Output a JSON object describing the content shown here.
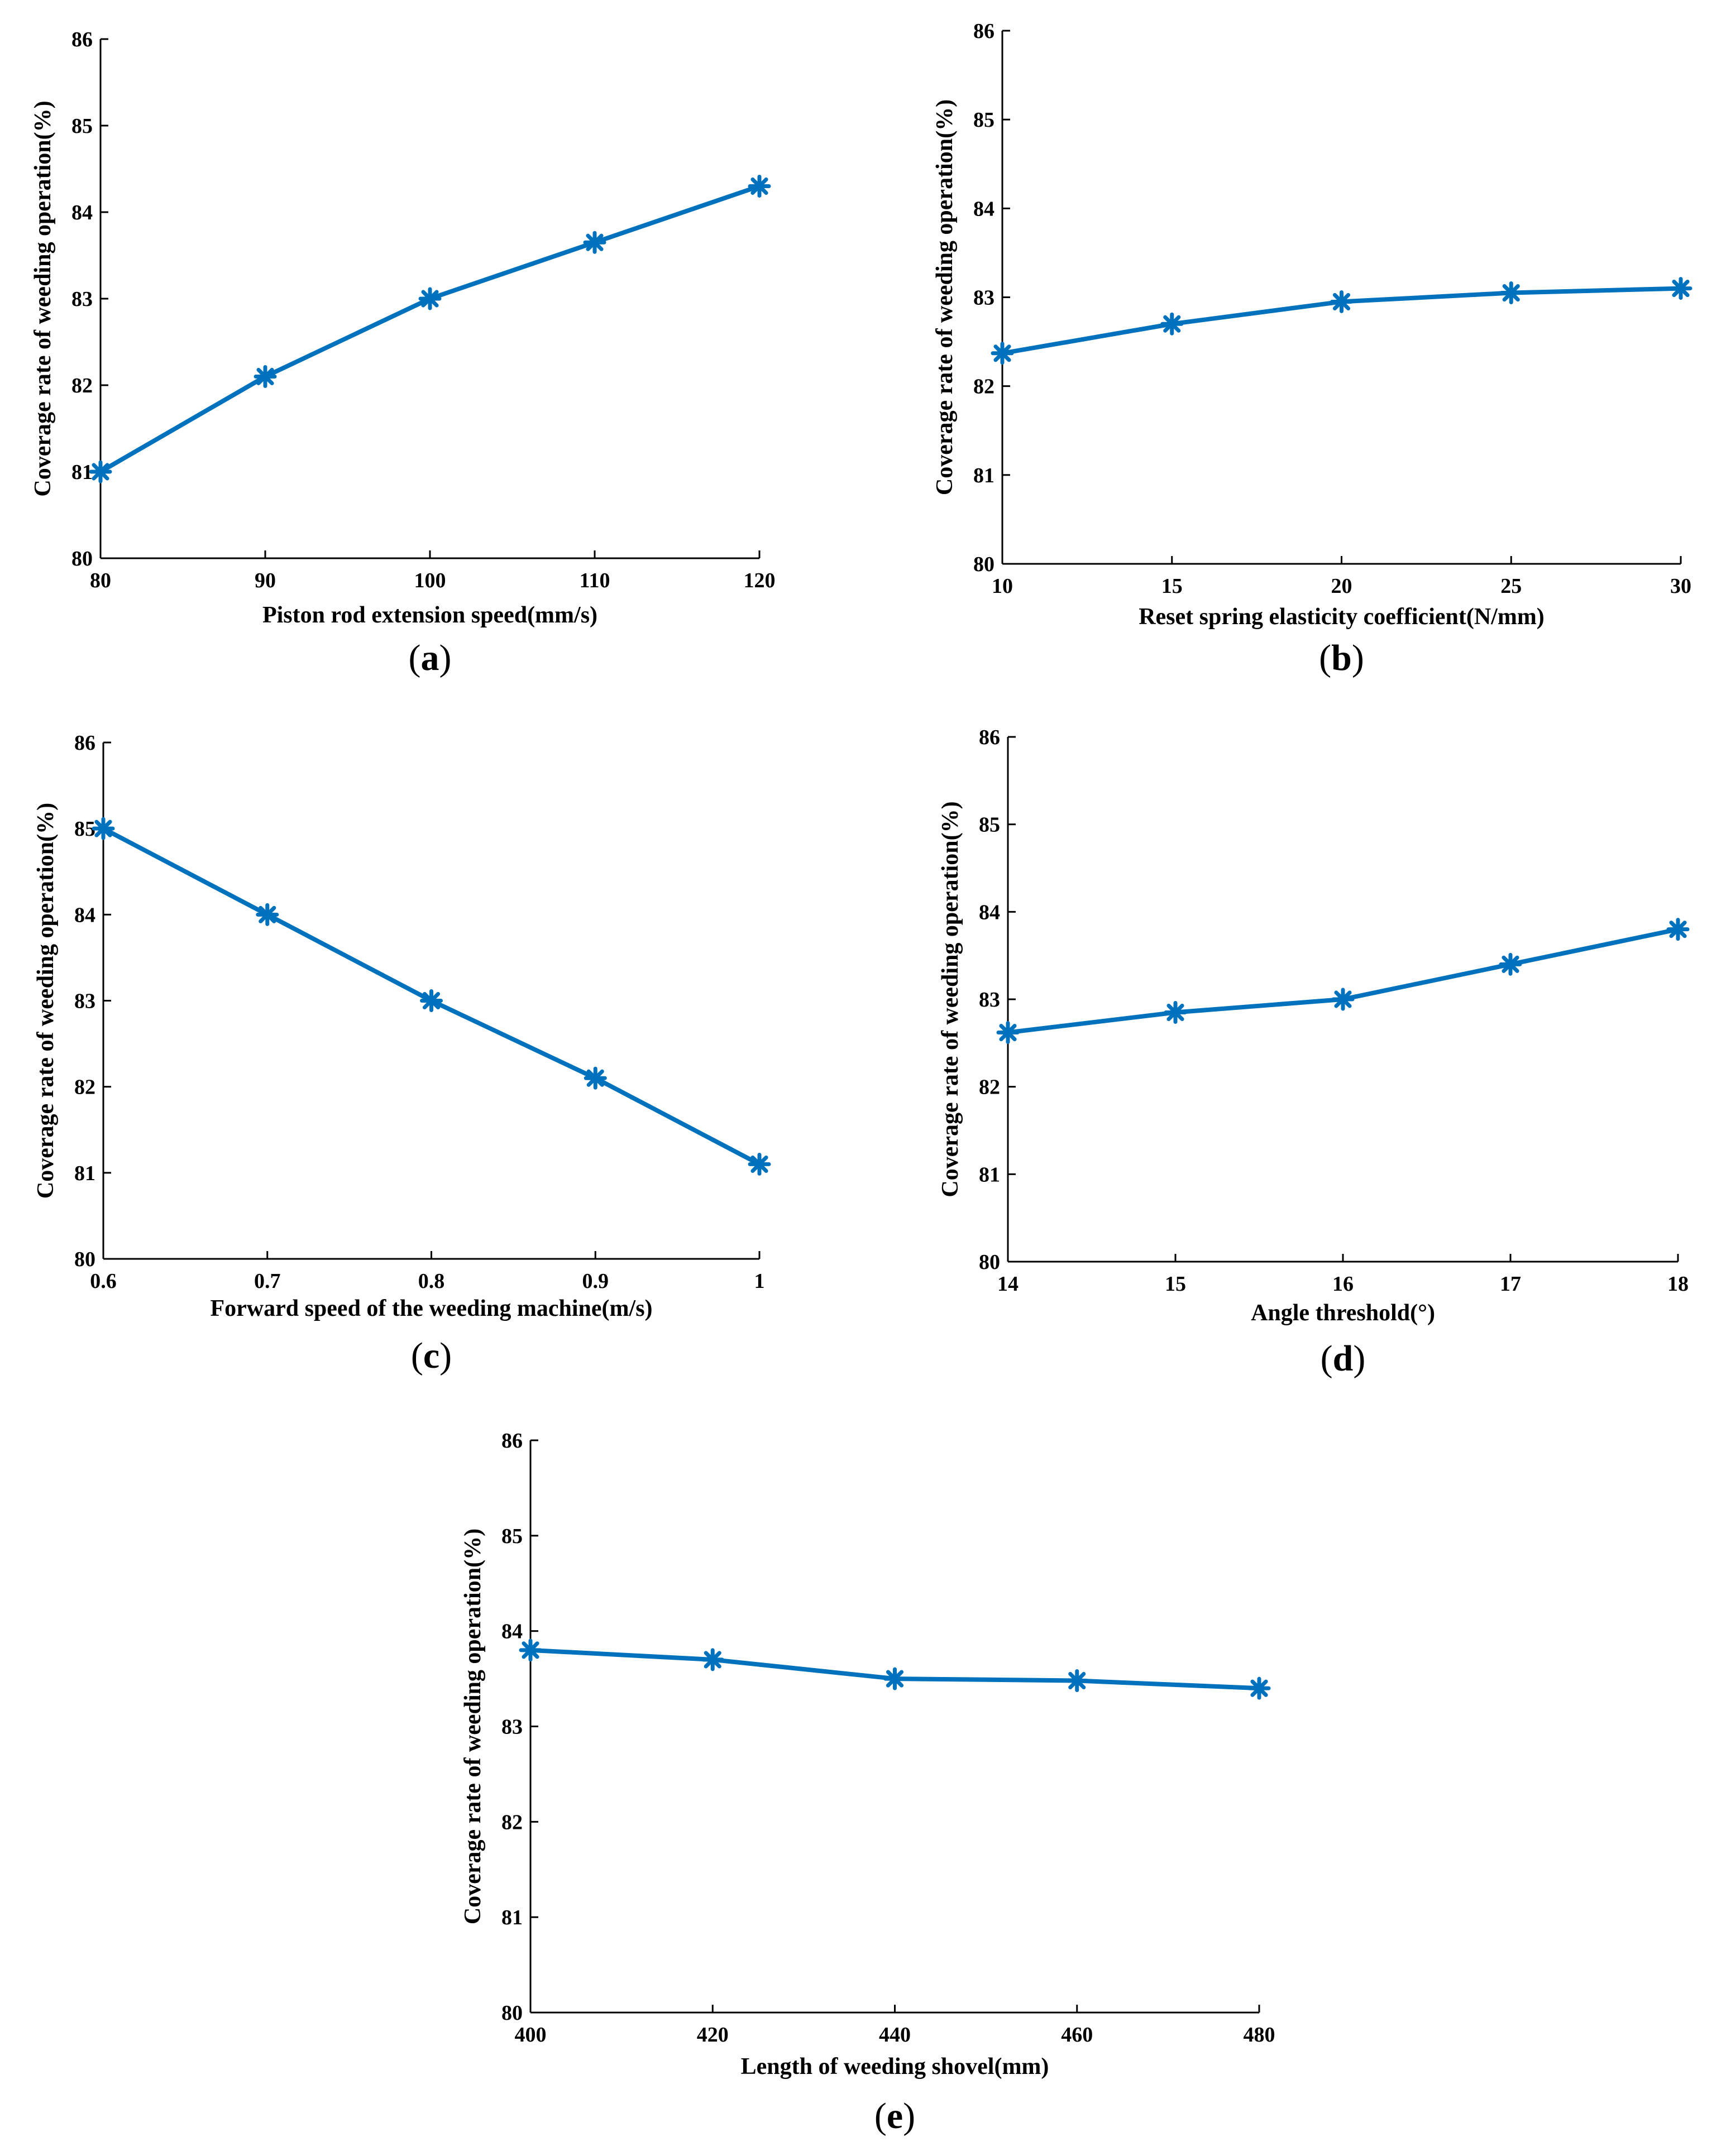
{
  "figure": {
    "captions": [
      "(a)",
      "(b)",
      "(c)",
      "(d)",
      "(e)"
    ]
  },
  "style": {
    "line_color": "#0072BD",
    "axis_color": "#000000"
  },
  "chart_data": [
    {
      "panel": "a",
      "type": "line",
      "x": [
        80,
        90,
        100,
        110,
        120
      ],
      "y": [
        81.0,
        82.1,
        83.0,
        83.65,
        84.3
      ],
      "xticks": [
        "80",
        "90",
        "100",
        "110",
        "120"
      ],
      "yticks": [
        "80",
        "81",
        "82",
        "83",
        "84",
        "85",
        "86"
      ],
      "xlim": [
        80,
        120
      ],
      "ylim": [
        80,
        86
      ],
      "xlabel": "Piston rod extension speed(mm/s)",
      "ylabel": "Coverage rate of weeding operation(%)",
      "marker": "asterisk",
      "caption_letter": "a"
    },
    {
      "panel": "b",
      "type": "line",
      "x": [
        10,
        15,
        20,
        25,
        30
      ],
      "y": [
        82.37,
        82.7,
        82.95,
        83.05,
        83.1
      ],
      "xticks": [
        "10",
        "15",
        "20",
        "25",
        "30"
      ],
      "yticks": [
        "80",
        "81",
        "82",
        "83",
        "84",
        "85",
        "86"
      ],
      "xlim": [
        10,
        30
      ],
      "ylim": [
        80,
        86
      ],
      "xlabel": "Reset spring elasticity coefficient(N/mm)",
      "ylabel": "Coverage rate of weeding operation(%)",
      "marker": "asterisk",
      "caption_letter": "b"
    },
    {
      "panel": "c",
      "type": "line",
      "x": [
        0.6,
        0.7,
        0.8,
        0.9,
        1.0
      ],
      "y": [
        85.0,
        84.0,
        83.0,
        82.1,
        81.1
      ],
      "xticks": [
        "0.6",
        "0.7",
        "0.8",
        "0.9",
        "1"
      ],
      "yticks": [
        "80",
        "81",
        "82",
        "83",
        "84",
        "85",
        "86"
      ],
      "xlim": [
        0.6,
        1.0
      ],
      "ylim": [
        80,
        86
      ],
      "xlabel": "Forward speed of the weeding machine(m/s)",
      "ylabel": "Coverage rate of weeding operation(%)",
      "marker": "asterisk",
      "caption_letter": "c"
    },
    {
      "panel": "d",
      "type": "line",
      "x": [
        14,
        15,
        16,
        17,
        18
      ],
      "y": [
        82.62,
        82.85,
        83.0,
        83.4,
        83.8
      ],
      "xticks": [
        "14",
        "15",
        "16",
        "17",
        "18"
      ],
      "yticks": [
        "80",
        "81",
        "82",
        "83",
        "84",
        "85",
        "86"
      ],
      "xlim": [
        14,
        18
      ],
      "ylim": [
        80,
        86
      ],
      "xlabel": "Angle threshold(°)",
      "ylabel": "Coverage rate of weeding operation(%)",
      "marker": "asterisk",
      "caption_letter": "d"
    },
    {
      "panel": "e",
      "type": "line",
      "x": [
        400,
        420,
        440,
        460,
        480
      ],
      "y": [
        83.8,
        83.7,
        83.5,
        83.48,
        83.4
      ],
      "xticks": [
        "400",
        "420",
        "440",
        "460",
        "480"
      ],
      "yticks": [
        "80",
        "81",
        "82",
        "83",
        "84",
        "85",
        "86"
      ],
      "xlim": [
        400,
        480
      ],
      "ylim": [
        80,
        86
      ],
      "xlabel": "Length of weeding shovel(mm)",
      "ylabel": "Coverage rate of weeding operation(%)",
      "marker": "asterisk",
      "caption_letter": "e"
    }
  ]
}
